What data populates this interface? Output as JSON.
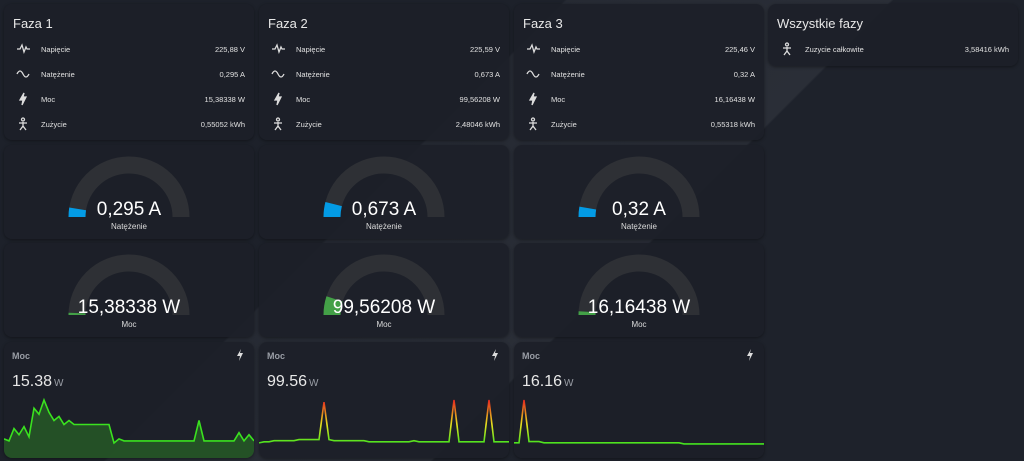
{
  "phases": [
    {
      "title": "Faza 1",
      "rows": [
        {
          "label": "Napięcie",
          "value": "225,88 V"
        },
        {
          "label": "Natężenie",
          "value": "0,295 A"
        },
        {
          "label": "Moc",
          "value": "15,38338 W"
        },
        {
          "label": "Zużycie",
          "value": "0,55052 kWh"
        }
      ],
      "gauges": [
        {
          "value": "0,295 A",
          "label": "Natężenie"
        },
        {
          "value": "15,38338 W",
          "label": "Moc"
        }
      ],
      "graph": {
        "title": "Moc",
        "value": "15.38",
        "unit": "W",
        "color": "#3ae21f",
        "history": [
          3,
          2,
          8,
          5,
          9,
          4,
          18,
          15,
          22,
          16,
          12,
          14,
          10,
          12,
          10,
          10,
          10,
          10,
          10,
          10,
          10,
          10,
          1,
          3,
          2,
          2,
          2,
          2,
          2,
          2,
          2,
          2,
          2,
          2,
          2,
          2,
          2,
          2,
          2,
          12,
          2,
          2,
          2,
          2,
          2,
          2,
          2,
          6,
          2,
          5,
          2
        ]
      }
    },
    {
      "title": "Faza 2",
      "rows": [
        {
          "label": "Napięcie",
          "value": "225,59 V"
        },
        {
          "label": "Natężenie",
          "value": "0,673 A"
        },
        {
          "label": "Moc",
          "value": "99,56208 W"
        },
        {
          "label": "Zużycie",
          "value": "2,48046 kWh"
        }
      ],
      "gauges": [
        {
          "value": "0,673 A",
          "label": "Natężenie"
        },
        {
          "value": "99,56208 W",
          "label": "Moc"
        }
      ],
      "graph": {
        "title": "Moc",
        "value": "99.56",
        "unit": "W",
        "color": "gradient",
        "history": [
          2,
          3,
          3,
          4,
          4,
          4,
          4,
          4,
          5,
          5,
          5,
          5,
          5,
          40,
          5,
          4,
          4,
          4,
          4,
          4,
          4,
          4,
          3,
          3,
          3,
          3,
          3,
          3,
          3,
          3,
          3,
          4,
          3,
          3,
          3,
          3,
          3,
          3,
          3,
          42,
          3,
          3,
          3,
          3,
          3,
          3,
          42,
          3,
          3,
          3,
          3
        ]
      }
    },
    {
      "title": "Faza 3",
      "rows": [
        {
          "label": "Napięcie",
          "value": "225,46 V"
        },
        {
          "label": "Natężenie",
          "value": "0,32 A"
        },
        {
          "label": "Moc",
          "value": "16,16438 W"
        },
        {
          "label": "Zużycie",
          "value": "0,55318 kWh"
        }
      ],
      "gauges": [
        {
          "value": "0,32 A",
          "label": "Natężenie"
        },
        {
          "value": "16,16438 W",
          "label": "Moc"
        }
      ],
      "graph": {
        "title": "Moc",
        "value": "16.16",
        "unit": "W",
        "color": "gradient",
        "history": [
          2,
          2,
          40,
          3,
          3,
          3,
          2,
          2,
          2,
          2,
          2,
          2,
          2,
          2,
          2,
          2,
          2,
          2,
          2,
          2,
          2,
          2,
          2,
          2,
          2,
          2,
          2,
          2,
          2,
          2,
          2,
          2,
          2,
          2,
          1,
          1,
          1,
          1,
          1,
          1,
          1,
          1,
          1,
          1,
          1,
          1,
          1,
          1,
          1,
          1,
          1
        ]
      }
    }
  ],
  "summary": {
    "title": "Wszystkie fazy",
    "rows": [
      {
        "label": "Zuzycie całkowite",
        "value": "3,58416 kWh"
      }
    ]
  }
}
